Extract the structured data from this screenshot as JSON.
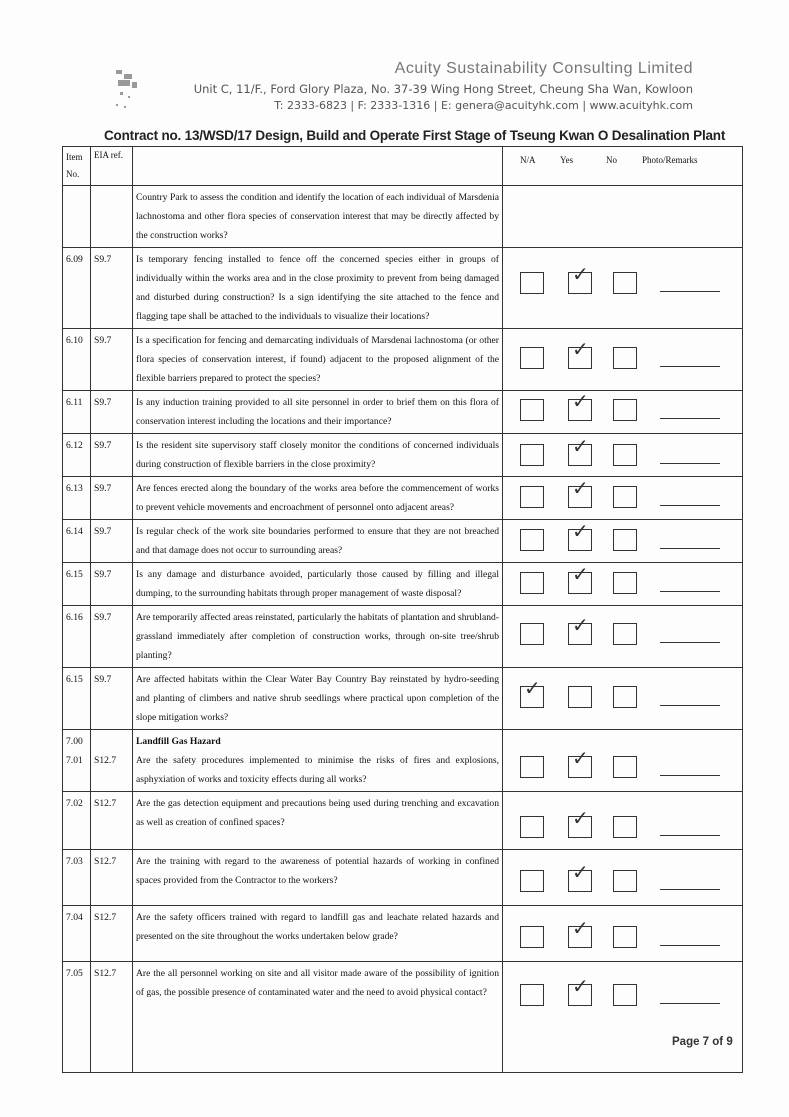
{
  "header": {
    "company": "Acuity Sustainability Consulting Limited",
    "address": "Unit C, 11/F., Ford Glory Plaza, No. 37-39 Wing Hong Street, Cheung Sha Wan, Kowloon",
    "contact": "T: 2333-6823 | F: 2333-1316 | E: genera@acuityhk.com | www.acuityhk.com",
    "contract_title": "Contract no.  13/WSD/17 Design, Build and Operate First Stage of Tseung Kwan O Desalination Plant"
  },
  "columns": {
    "item": "Item No.",
    "eia": "EIA ref.",
    "na": "N/A",
    "yes": "Yes",
    "no": "No",
    "remarks": "Photo/Remarks"
  },
  "rows": [
    {
      "item": "",
      "eia": "",
      "heading": "",
      "question": "Country Park to assess the condition and identify the location of each individual of Marsdenia lachnostoma and other flora species of conservation interest that may be directly affected by the construction works?",
      "answer": ""
    },
    {
      "item": "6.09",
      "eia": "S9.7",
      "heading": "",
      "question": "Is temporary fencing installed to fence off the concerned species either in groups of individually within the works area and in the close proximity to prevent from being damaged and disturbed during construction? Is a sign identifying the site attached to the fence and flagging tape shall be attached to the individuals to visualize their locations?",
      "answer": "yes"
    },
    {
      "item": "6.10",
      "eia": "S9.7",
      "heading": "",
      "question": "Is a specification for fencing and demarcating individuals of Marsdenai lachnostoma (or other flora species of conservation interest, if found) adjacent to the proposed alignment of the flexible barriers prepared to protect the species?",
      "answer": "yes"
    },
    {
      "item": "6.11",
      "eia": "S9.7",
      "heading": "",
      "question": "Is any induction training provided to all site personnel in order to brief them on this flora of conservation interest including the locations and their importance?",
      "answer": "yes"
    },
    {
      "item": "6.12",
      "eia": "S9.7",
      "heading": "",
      "question": "Is the resident site supervisory staff closely monitor the conditions of concerned individuals during construction of flexible barriers in the close  proximity?",
      "answer": "yes"
    },
    {
      "item": "6.13",
      "eia": "S9.7",
      "heading": "",
      "question": "Are fences erected along the boundary of the works area before the commencement of works to prevent vehicle movements and encroachment of personnel onto adjacent areas?",
      "answer": "yes"
    },
    {
      "item": "6.14",
      "eia": "S9.7",
      "heading": "",
      "question": "Is regular check of the work site boundaries performed to ensure that they are not breached and that damage does not occur to surrounding areas?",
      "answer": "yes"
    },
    {
      "item": "6.15",
      "eia": "S9.7",
      "heading": "",
      "question": "Is any damage and disturbance avoided, particularly those caused by filling and illegal dumping, to the surrounding habitats through proper  management  of  waste disposal?",
      "answer": "yes"
    },
    {
      "item": "6.16",
      "eia": "S9.7",
      "heading": "",
      "question": "Are temporarily affected areas reinstated, particularly the habitats of plantation and shrubland-grassland immediately after completion of construction works, through on-site tree/shrub planting?",
      "answer": "yes"
    },
    {
      "item": "6.15",
      "eia": "S9.7",
      "heading": "",
      "question": "Are affected habitats within the Clear Water Bay Country Bay reinstated by hydro-seeding and planting of climbers and native shrub seedlings where practical upon completion of the slope mitigation works?",
      "answer": "na"
    },
    {
      "item": "7.00",
      "item2": "7.01",
      "eia": "S12.7",
      "heading": "Landfill Gas Hazard",
      "question": "Are the safety procedures implemented to minimise the risks of fires and explosions, asphyxiation of works and toxicity effects during all works?",
      "answer": "yes"
    },
    {
      "item": "7.02",
      "eia": "S12.7",
      "heading": "",
      "question": "Are the gas detection equipment and precautions being used during trenching and excavation as well as creation of confined spaces?",
      "answer": "yes"
    },
    {
      "item": "7.03",
      "eia": "S12.7",
      "heading": "",
      "question": "Are the training with regard to the awareness of potential hazards of working in confined spaces provided from the Contractor to the workers?",
      "answer": "yes"
    },
    {
      "item": "7.04",
      "eia": "S12.7",
      "heading": "",
      "question": "Are the safety officers trained with regard to landfill gas and leachate related hazards and presented on the site throughout the works undertaken below grade?",
      "answer": "yes"
    },
    {
      "item": "7.05",
      "eia": "S12.7",
      "heading": "",
      "question": "Are the all personnel working on site and all visitor made aware of the possibility of ignition of gas, the possible presence of contaminated water and the need to avoid physical contact?",
      "answer": "yes"
    }
  ],
  "footer": {
    "page": "Page 7 of 9"
  }
}
